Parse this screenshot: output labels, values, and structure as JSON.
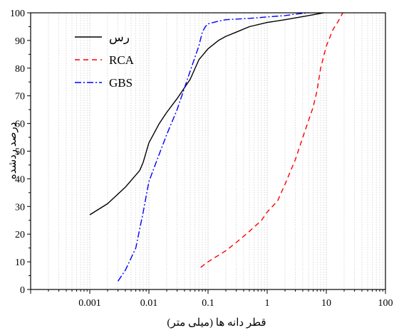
{
  "chart_data": {
    "type": "line",
    "xlabel": "قطر دانه ها (میلی متر)",
    "ylabel": "درصد ردشده",
    "x_scale": "log",
    "xlim": [
      0.0001,
      100
    ],
    "ylim": [
      0,
      100
    ],
    "x_ticks": [
      0.001,
      0.01,
      0.1,
      1,
      10,
      100
    ],
    "x_tick_labels": [
      "0.001",
      "0.01",
      "0.1",
      "1",
      "10",
      "100"
    ],
    "y_ticks": [
      0,
      10,
      20,
      30,
      40,
      50,
      60,
      70,
      80,
      90,
      100
    ],
    "y_tick_labels": [
      "0",
      "10",
      "20",
      "30",
      "40",
      "50",
      "60",
      "70",
      "80",
      "90",
      "100"
    ],
    "grid": "vertical dotted minor and major lines on log x-axis",
    "legend_position": "top-left",
    "series": [
      {
        "name": "رس",
        "color": "#000000",
        "dash": "solid",
        "x": [
          0.001,
          0.002,
          0.004,
          0.007,
          0.008,
          0.01,
          0.015,
          0.02,
          0.03,
          0.05,
          0.07,
          0.1,
          0.15,
          0.2,
          0.3,
          0.5,
          1,
          2,
          5,
          9
        ],
        "y": [
          27,
          31,
          37,
          43,
          46,
          53,
          60,
          64,
          69,
          76,
          83,
          87,
          90,
          91.5,
          93,
          95,
          96.5,
          97.5,
          99,
          100
        ]
      },
      {
        "name": "RCA",
        "color": "#ff0000",
        "dash": "dashed",
        "x": [
          0.075,
          0.1,
          0.2,
          0.3,
          0.5,
          0.8,
          1,
          1.5,
          2,
          3,
          4,
          5,
          6,
          7,
          8,
          10,
          13,
          16,
          19
        ],
        "y": [
          8,
          10,
          14,
          17,
          21,
          25,
          28,
          32,
          38,
          47,
          55,
          61,
          66,
          72,
          80,
          88,
          94,
          97,
          100
        ]
      },
      {
        "name": "GBS",
        "color": "#0000ff",
        "dash": "dash-dot",
        "x": [
          0.003,
          0.004,
          0.006,
          0.008,
          0.01,
          0.015,
          0.02,
          0.03,
          0.05,
          0.07,
          0.08,
          0.09,
          0.1,
          0.15,
          0.2,
          0.5,
          1,
          2,
          3,
          5
        ],
        "y": [
          3,
          7,
          15,
          28,
          39,
          49,
          56,
          65,
          79,
          88,
          93,
          95,
          96,
          97,
          97.5,
          98,
          98.5,
          99,
          99.5,
          100
        ]
      }
    ]
  }
}
